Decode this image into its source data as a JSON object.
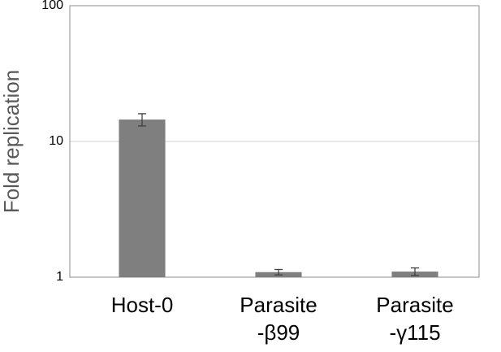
{
  "chart_data": {
    "type": "bar",
    "y_label": "Fold replication",
    "categories": [
      "Host-0",
      "Parasite\n-β99",
      "Parasite\n-γ115"
    ],
    "values": [
      14.5,
      1.09,
      1.1
    ],
    "errors": [
      1.5,
      0.05,
      0.07
    ],
    "color": "#7f7f7f",
    "log_scale": true,
    "ylim": [
      1,
      100
    ],
    "yticks": [
      1,
      10,
      100
    ],
    "grid": true
  }
}
